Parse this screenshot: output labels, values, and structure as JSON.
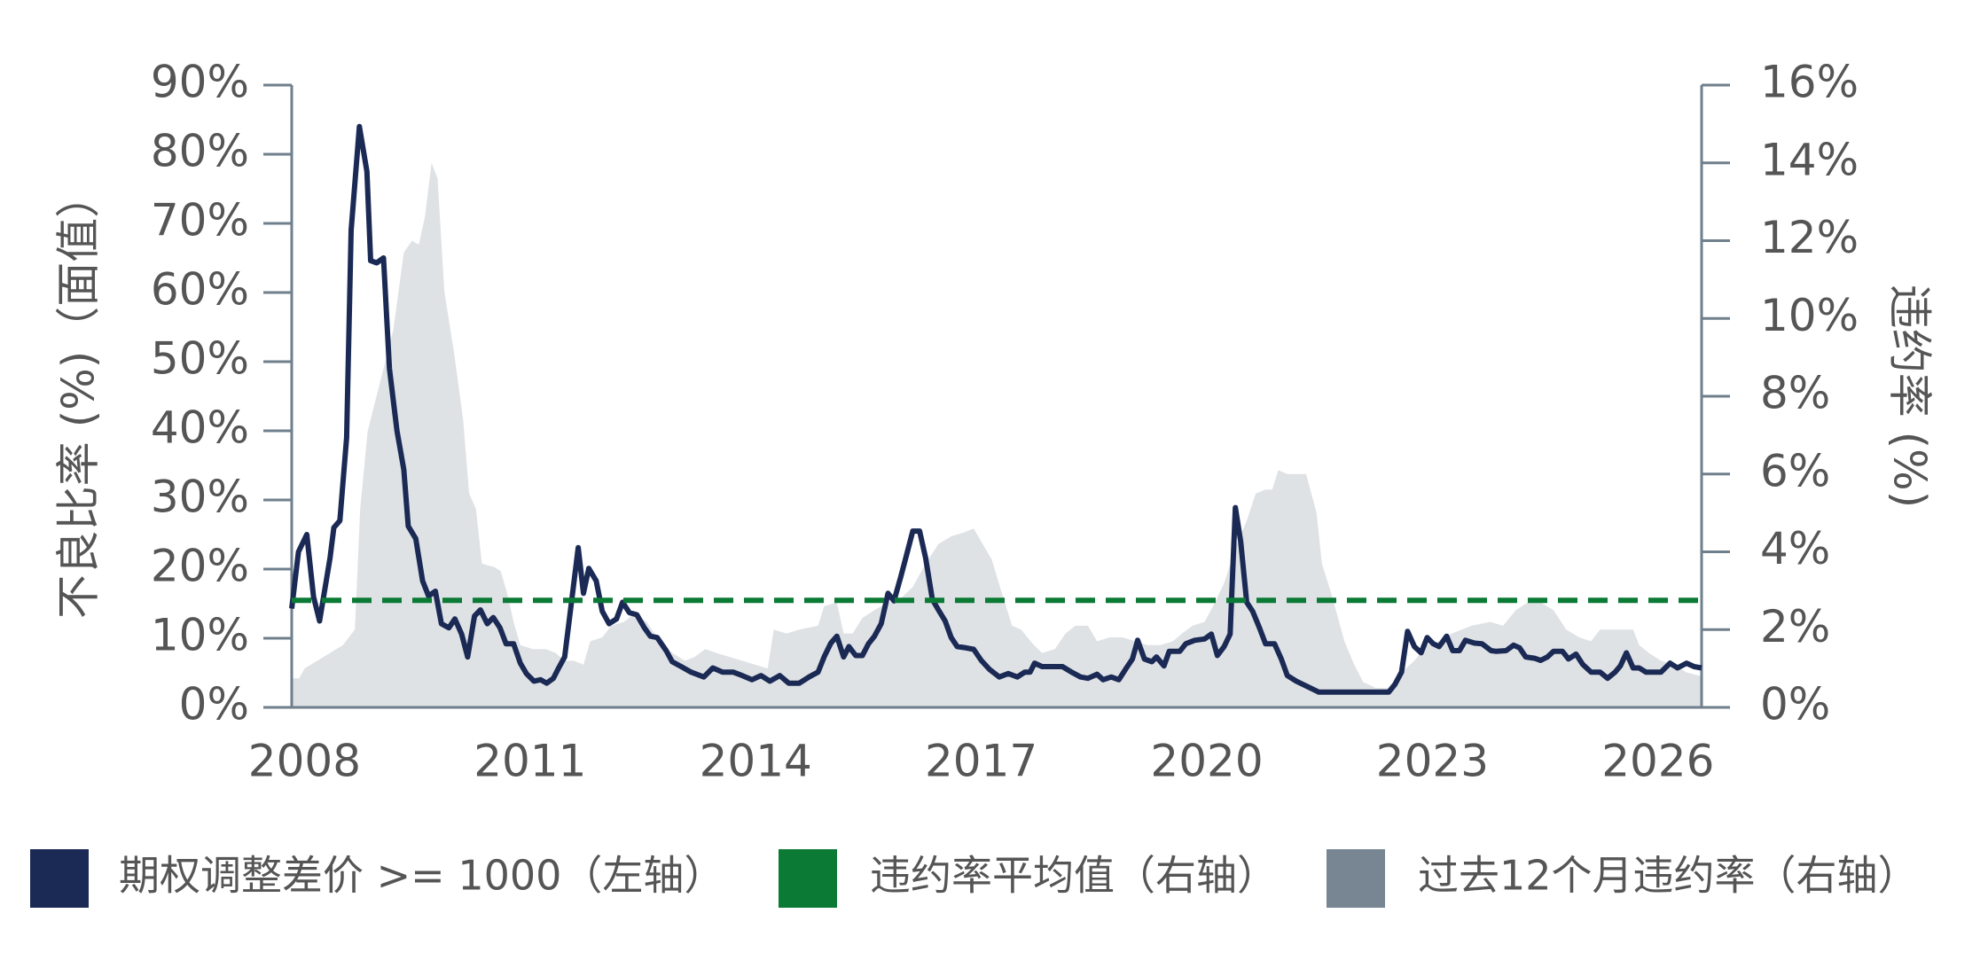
{
  "chart_data": {
    "type": "line",
    "ylabel": "不良比率 (%)（面值）",
    "y2label": "违约率 (%)",
    "xlim": [
      2007.83,
      2026.58
    ],
    "xticks": [
      2008,
      2011,
      2014,
      2017,
      2020,
      2023,
      2026
    ],
    "ylim": [
      0,
      90
    ],
    "yticks": [
      {
        "value": 0,
        "label": "0%"
      },
      {
        "value": 10,
        "label": "10%"
      },
      {
        "value": 20,
        "label": "20%"
      },
      {
        "value": 30,
        "label": "30%"
      },
      {
        "value": 40,
        "label": "40%"
      },
      {
        "value": 50,
        "label": "50%"
      },
      {
        "value": 60,
        "label": "60%"
      },
      {
        "value": 70,
        "label": "70%"
      },
      {
        "value": 80,
        "label": "80%"
      },
      {
        "value": 90,
        "label": "90%"
      }
    ],
    "y2lim": [
      0,
      16
    ],
    "y2ticks": [
      {
        "value": 0,
        "label": "0%"
      },
      {
        "value": 2,
        "label": "2%"
      },
      {
        "value": 4,
        "label": "4%"
      },
      {
        "value": 6,
        "label": "6%"
      },
      {
        "value": 8,
        "label": "8%"
      },
      {
        "value": 10,
        "label": "10%"
      },
      {
        "value": 12,
        "label": "12%"
      },
      {
        "value": 14,
        "label": "14%"
      },
      {
        "value": 16,
        "label": "16%"
      }
    ],
    "series": [
      {
        "name": "期权调整差价 >= 1000（左轴）",
        "color": "#1b2a55",
        "kind": "line",
        "x": [
          2007.83,
          2007.92,
          2008.03,
          2008.12,
          2008.2,
          2008.34,
          2008.39,
          2008.47,
          2008.56,
          2008.62,
          2008.73,
          2008.83,
          2008.88,
          2008.96,
          2009.05,
          2009.13,
          2009.23,
          2009.32,
          2009.38,
          2009.48,
          2009.57,
          2009.65,
          2009.74,
          2009.82,
          2009.92,
          2010.0,
          2010.09,
          2010.17,
          2010.26,
          2010.34,
          2010.43,
          2010.51,
          2010.6,
          2010.68,
          2010.78,
          2010.87,
          2010.95,
          2011.05,
          2011.14,
          2011.22,
          2011.31,
          2011.37,
          2011.46,
          2011.54,
          2011.64,
          2011.71,
          2011.78,
          2011.88,
          2011.96,
          2012.05,
          2012.15,
          2012.23,
          2012.32,
          2012.42,
          2012.52,
          2012.6,
          2012.69,
          2012.81,
          2012.89,
          2013.01,
          2013.14,
          2013.31,
          2013.43,
          2013.56,
          2013.7,
          2013.82,
          2013.95,
          2014.07,
          2014.19,
          2014.32,
          2014.44,
          2014.58,
          2014.71,
          2014.83,
          2014.91,
          2015.0,
          2015.08,
          2015.17,
          2015.24,
          2015.33,
          2015.42,
          2015.5,
          2015.58,
          2015.67,
          2015.76,
          2015.84,
          2015.93,
          2016.01,
          2016.09,
          2016.18,
          2016.26,
          2016.35,
          2016.43,
          2016.52,
          2016.6,
          2016.68,
          2016.8,
          2016.9,
          2017.0,
          2017.11,
          2017.24,
          2017.36,
          2017.48,
          2017.58,
          2017.65,
          2017.71,
          2017.81,
          2017.95,
          2018.08,
          2018.2,
          2018.32,
          2018.42,
          2018.54,
          2018.62,
          2018.73,
          2018.83,
          2018.93,
          2019.01,
          2019.08,
          2019.17,
          2019.27,
          2019.33,
          2019.43,
          2019.5,
          2019.64,
          2019.72,
          2019.84,
          2019.97,
          2020.06,
          2020.14,
          2020.23,
          2020.31,
          2020.38,
          2020.45,
          2020.53,
          2020.61,
          2020.7,
          2020.78,
          2020.9,
          2020.99,
          2021.07,
          2021.19,
          2021.32,
          2021.49,
          2021.83,
          2022.17,
          2022.42,
          2022.5,
          2022.59,
          2022.67,
          2022.76,
          2022.85,
          2022.93,
          2023.01,
          2023.09,
          2023.19,
          2023.27,
          2023.36,
          2023.44,
          2023.56,
          2023.66,
          2023.78,
          2023.85,
          2023.98,
          2024.08,
          2024.16,
          2024.24,
          2024.36,
          2024.44,
          2024.53,
          2024.61,
          2024.73,
          2024.81,
          2024.91,
          2025.0,
          2025.11,
          2025.23,
          2025.33,
          2025.43,
          2025.5,
          2025.58,
          2025.67,
          2025.75,
          2025.84,
          2025.96,
          2026.04,
          2026.16,
          2026.26,
          2026.38,
          2026.48,
          2026.58
        ],
        "values": [
          14.3,
          22.5,
          25,
          16,
          12.5,
          21.6,
          26,
          27,
          39,
          69,
          84,
          77.5,
          64.6,
          64.3,
          65,
          49,
          40,
          34.4,
          26.2,
          24.4,
          18.3,
          16.1,
          16.8,
          12.1,
          11.5,
          12.8,
          10.6,
          7.3,
          13.2,
          14.1,
          12.1,
          13,
          11.5,
          9.2,
          9.2,
          6.4,
          4.9,
          3.8,
          4,
          3.5,
          4.2,
          5.5,
          7.3,
          14.3,
          23.1,
          16.5,
          20.1,
          18.3,
          13.9,
          12.1,
          12.8,
          15.2,
          13.7,
          13.4,
          11.5,
          10.3,
          10.1,
          8.2,
          6.6,
          5.9,
          5.1,
          4.4,
          5.7,
          5.1,
          5.1,
          4.6,
          4,
          4.6,
          3.8,
          4.6,
          3.5,
          3.5,
          4.4,
          5.1,
          7.3,
          9.3,
          10.3,
          7.3,
          8.8,
          7.5,
          7.5,
          9.2,
          10.3,
          12.1,
          16.5,
          15.4,
          18.9,
          22.2,
          25.5,
          25.5,
          21.6,
          15.6,
          14.1,
          12.5,
          10.1,
          8.8,
          8.6,
          8.4,
          6.8,
          5.5,
          4.4,
          4.9,
          4.4,
          5.1,
          5.1,
          6.4,
          5.9,
          5.9,
          5.9,
          5.1,
          4.4,
          4.2,
          4.8,
          4,
          4.4,
          4,
          5.7,
          7,
          9.7,
          7,
          6.6,
          7.3,
          6,
          8.1,
          8.1,
          9.2,
          9.7,
          9.9,
          10.6,
          7.5,
          8.8,
          10.6,
          28.9,
          24,
          15.2,
          13.9,
          11.5,
          9.2,
          9.2,
          7,
          4.6,
          3.8,
          3.1,
          2.2,
          2.2,
          2.2,
          2.2,
          3.3,
          5.1,
          11,
          8.8,
          7.9,
          10.1,
          9.2,
          8.8,
          10.3,
          8.2,
          8.2,
          9.7,
          9.3,
          9.2,
          8.2,
          8.1,
          8.2,
          9,
          8.6,
          7.3,
          7.1,
          6.8,
          7.3,
          8.1,
          8.1,
          7,
          7.7,
          6.2,
          5.1,
          5.1,
          4.2,
          5.1,
          6,
          7.9,
          5.7,
          5.7,
          5.1,
          5.1,
          5.1,
          6.4,
          5.7,
          6.4,
          5.9,
          5.7
        ]
      },
      {
        "name": "违约率平均值（右轴）",
        "color": "#0a7a35",
        "kind": "dashed",
        "axis": "y2",
        "x": [
          2007.83,
          2026.58
        ],
        "values": [
          2.75,
          2.75
        ]
      },
      {
        "name": "过去12个月违约率（右轴）",
        "color": "#788593",
        "kind": "area",
        "axis": "y2",
        "x": [
          2007.83,
          2007.93,
          2008.0,
          2008.17,
          2008.34,
          2008.51,
          2008.67,
          2008.74,
          2008.84,
          2009.01,
          2009.18,
          2009.32,
          2009.43,
          2009.52,
          2009.6,
          2009.69,
          2009.77,
          2009.86,
          2009.99,
          2010.11,
          2010.19,
          2010.28,
          2010.36,
          2010.53,
          2010.61,
          2010.7,
          2010.78,
          2010.87,
          2011.04,
          2011.21,
          2011.34,
          2011.46,
          2011.58,
          2011.71,
          2011.8,
          2011.96,
          2012.08,
          2012.25,
          2012.38,
          2012.55,
          2012.72,
          2012.89,
          2013.06,
          2013.19,
          2013.33,
          2013.48,
          2013.65,
          2013.82,
          2013.99,
          2014.16,
          2014.24,
          2014.41,
          2014.58,
          2014.83,
          2014.91,
          2015.08,
          2015.17,
          2015.29,
          2015.42,
          2015.58,
          2015.76,
          2015.93,
          2016.09,
          2016.26,
          2016.43,
          2016.6,
          2016.77,
          2016.9,
          2017.02,
          2017.14,
          2017.28,
          2017.41,
          2017.53,
          2017.7,
          2017.81,
          2017.98,
          2018.12,
          2018.25,
          2018.42,
          2018.54,
          2018.71,
          2018.88,
          2019.05,
          2019.21,
          2019.38,
          2019.55,
          2019.67,
          2019.81,
          2019.97,
          2020.11,
          2020.23,
          2020.4,
          2020.53,
          2020.65,
          2020.78,
          2020.87,
          2020.95,
          2021.07,
          2021.24,
          2021.32,
          2021.46,
          2021.53,
          2021.66,
          2021.83,
          2021.96,
          2022.08,
          2022.25,
          2022.42,
          2022.59,
          2022.76,
          2022.93,
          2023.09,
          2023.26,
          2023.52,
          2023.77,
          2023.94,
          2024.11,
          2024.27,
          2024.44,
          2024.61,
          2024.78,
          2024.95,
          2025.11,
          2025.23,
          2025.4,
          2025.53,
          2025.67,
          2025.75,
          2025.88,
          2026.04,
          2026.21,
          2026.38,
          2026.58
        ],
        "values": [
          0.75,
          0.75,
          1.0,
          1.2,
          1.4,
          1.6,
          2.0,
          5.1,
          7.1,
          8.4,
          9.7,
          11.7,
          12.0,
          11.9,
          12.6,
          14.0,
          13.6,
          10.7,
          9.1,
          7.4,
          5.5,
          5.1,
          3.7,
          3.6,
          3.5,
          2.9,
          2.2,
          1.6,
          1.5,
          1.5,
          1.4,
          1.2,
          1.2,
          1.1,
          1.7,
          1.8,
          2.1,
          2.2,
          2.4,
          2.2,
          1.7,
          1.4,
          1.2,
          1.3,
          1.5,
          1.4,
          1.3,
          1.2,
          1.1,
          1.0,
          2.0,
          1.9,
          2.0,
          2.1,
          2.6,
          2.7,
          1.9,
          1.9,
          2.3,
          2.5,
          2.7,
          2.8,
          3.1,
          3.7,
          4.2,
          4.4,
          4.5,
          4.6,
          4.2,
          3.8,
          2.9,
          2.1,
          2.0,
          1.6,
          1.4,
          1.5,
          1.9,
          2.1,
          2.1,
          1.7,
          1.8,
          1.8,
          1.7,
          1.6,
          1.6,
          1.7,
          1.9,
          2.1,
          2.2,
          2.7,
          3.2,
          4.2,
          4.8,
          5.5,
          5.6,
          5.6,
          6.1,
          6.0,
          6.0,
          6.0,
          5.0,
          3.7,
          2.9,
          1.7,
          1.1,
          0.65,
          0.5,
          0.5,
          0.9,
          1.2,
          1.6,
          1.7,
          1.9,
          2.1,
          2.2,
          2.1,
          2.5,
          2.7,
          2.7,
          2.5,
          2.0,
          1.8,
          1.7,
          2.0,
          2.0,
          2.0,
          2.0,
          1.6,
          1.4,
          1.2,
          1.1,
          0.9,
          0.8
        ]
      }
    ]
  }
}
